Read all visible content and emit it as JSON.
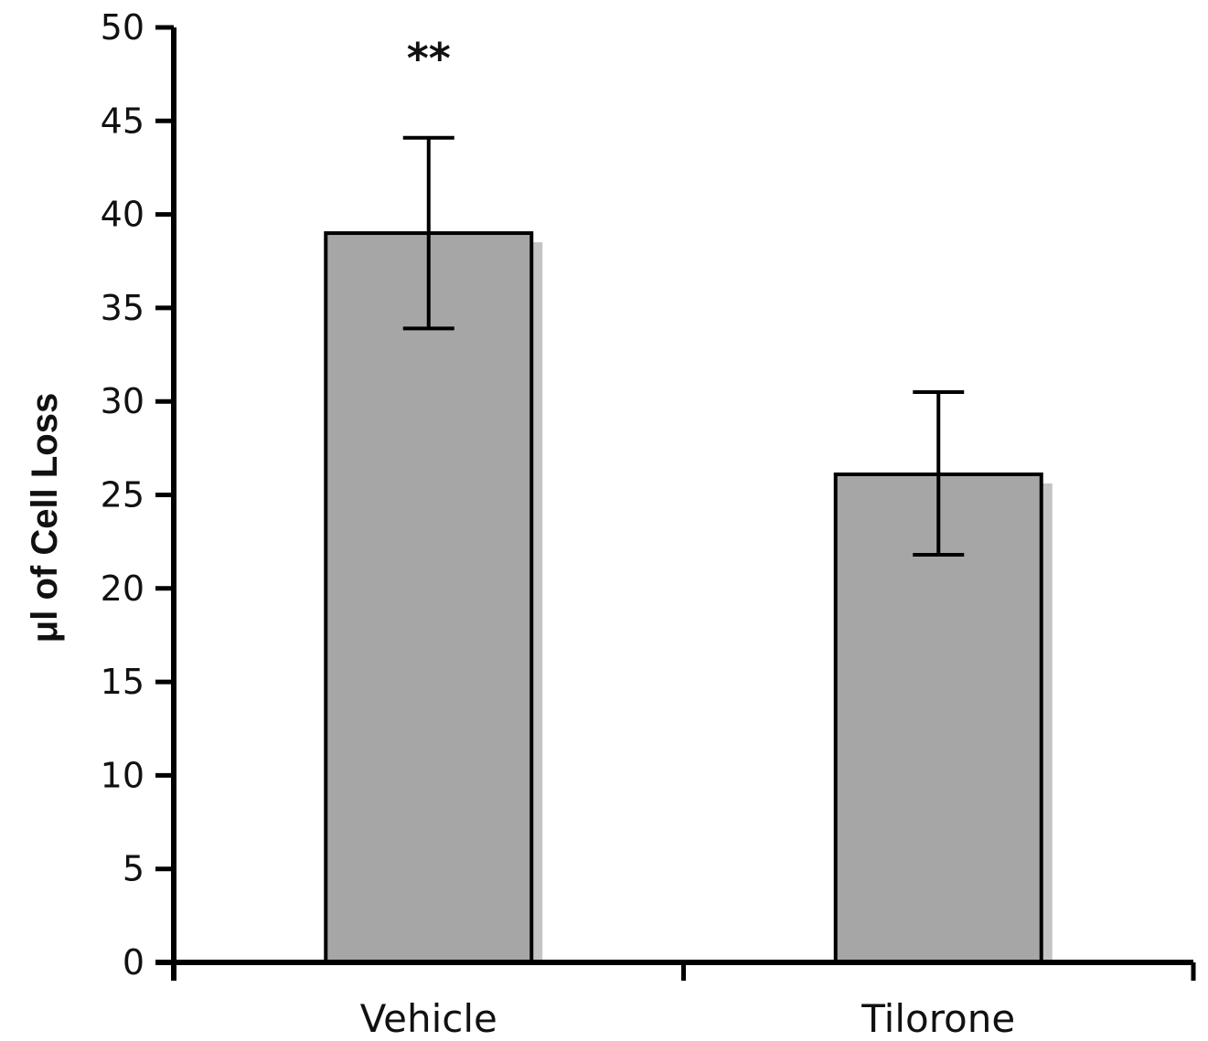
{
  "chart_data": {
    "type": "bar",
    "categories": [
      "Vehicle",
      "Tilorone"
    ],
    "values": [
      39,
      26.1
    ],
    "errors": [
      {
        "low": 33.9,
        "high": 44.1
      },
      {
        "low": 21.8,
        "high": 30.5
      }
    ],
    "title": "",
    "xlabel": "",
    "ylabel": "μl of Cell Loss",
    "ylim": [
      0,
      50
    ],
    "yticks": [
      0,
      5,
      10,
      15,
      20,
      25,
      30,
      35,
      40,
      45,
      50
    ],
    "annotations": [
      {
        "category": "Vehicle",
        "text": "**"
      }
    ],
    "grid": false,
    "legend": "none",
    "colors": {
      "bar": "#a6a6a6",
      "bar_shadow": "#c4c4c4",
      "axis": "#000000"
    }
  }
}
